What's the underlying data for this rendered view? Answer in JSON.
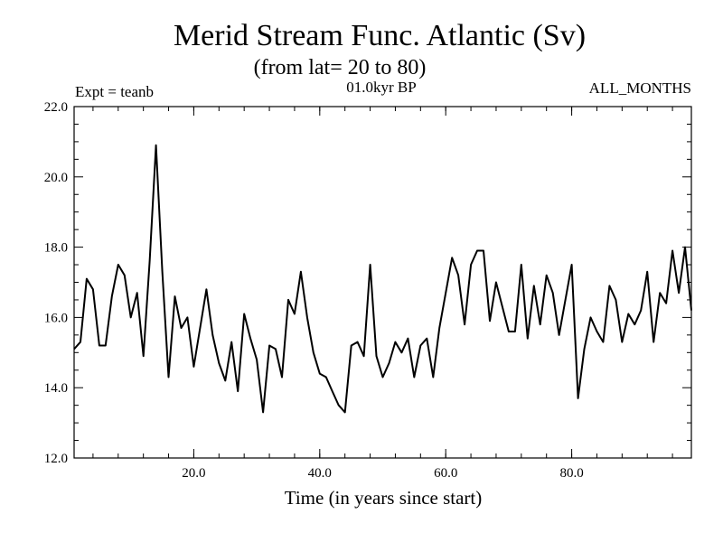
{
  "chart_data": {
    "type": "line",
    "title": "Merid Stream Func. Atlantic (Sv)",
    "subtitle": "(from lat= 20 to 80)",
    "label_left": "Expt = teanb",
    "label_center": "01.0kyr BP",
    "label_right": "ALL_MONTHS",
    "xlabel": "Time (in years since start)",
    "ylabel": "",
    "xlim": [
      1,
      99
    ],
    "ylim": [
      12,
      22
    ],
    "xticks": [
      20,
      40,
      60,
      80
    ],
    "xtick_labels": [
      "20.0",
      "40.0",
      "60.0",
      "80.0"
    ],
    "yticks": [
      12,
      14,
      16,
      18,
      20,
      22
    ],
    "ytick_labels": [
      "12.0",
      "14.0",
      "16.0",
      "18.0",
      "20.0",
      "22.0"
    ],
    "grid": false,
    "line_color": "#000000",
    "x_start": 1,
    "x_step": 1,
    "values": [
      15.1,
      15.3,
      17.1,
      16.8,
      15.2,
      15.2,
      16.6,
      17.5,
      17.2,
      16.0,
      16.7,
      14.9,
      17.6,
      20.9,
      17.3,
      14.3,
      16.6,
      15.7,
      16.0,
      14.6,
      15.7,
      16.8,
      15.5,
      14.7,
      14.2,
      15.3,
      13.9,
      16.1,
      15.4,
      14.8,
      13.3,
      15.2,
      15.1,
      14.3,
      16.5,
      16.1,
      17.3,
      16.0,
      15.0,
      14.4,
      14.3,
      13.9,
      13.5,
      13.3,
      15.2,
      15.3,
      14.9,
      17.5,
      14.9,
      14.3,
      14.7,
      15.3,
      15.0,
      15.4,
      14.3,
      15.2,
      15.4,
      14.3,
      15.7,
      16.7,
      17.7,
      17.2,
      15.8,
      17.5,
      17.9,
      17.9,
      15.9,
      17.0,
      16.3,
      15.6,
      15.6,
      17.5,
      15.4,
      16.9,
      15.8,
      17.2,
      16.7,
      15.5,
      16.5,
      17.5,
      13.7,
      15.1,
      16.0,
      15.6,
      15.3,
      16.9,
      16.5,
      15.3,
      16.1,
      15.8,
      16.2,
      17.3,
      15.3,
      16.7,
      16.4,
      17.9,
      16.7,
      18.0,
      16.2
    ]
  }
}
